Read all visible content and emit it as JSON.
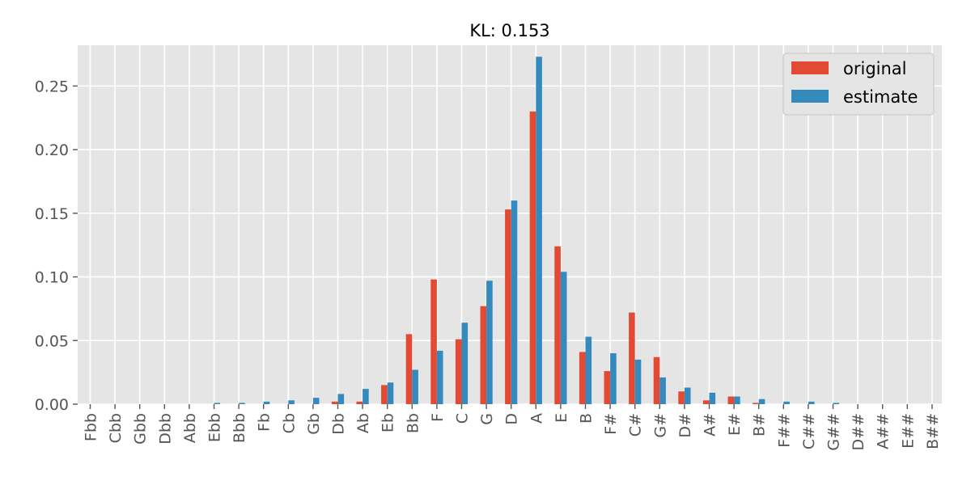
{
  "chart_data": {
    "type": "bar",
    "title": "KL: 0.153",
    "xlabel": "",
    "ylabel": "",
    "categories": [
      "Fbb",
      "Cbb",
      "Gbb",
      "Dbb",
      "Abb",
      "Ebb",
      "Bbb",
      "Fb",
      "Cb",
      "Gb",
      "Db",
      "Ab",
      "Eb",
      "Bb",
      "F",
      "C",
      "G",
      "D",
      "A",
      "E",
      "B",
      "F#",
      "C#",
      "G#",
      "D#",
      "A#",
      "E#",
      "B#",
      "F##",
      "C##",
      "G##",
      "D##",
      "A##",
      "E##",
      "B##"
    ],
    "series": [
      {
        "name": "original",
        "color": "#E24A33",
        "values": [
          0,
          0,
          0,
          0,
          0,
          0,
          0,
          0,
          0,
          0,
          0.002,
          0.002,
          0.015,
          0.055,
          0.098,
          0.051,
          0.077,
          0.153,
          0.23,
          0.124,
          0.041,
          0.026,
          0.072,
          0.037,
          0.01,
          0.003,
          0.006,
          0.001,
          0,
          0,
          0,
          0,
          0,
          0,
          0
        ]
      },
      {
        "name": "estimate",
        "color": "#348ABD",
        "values": [
          0,
          0,
          0,
          0,
          0,
          0.001,
          0.001,
          0.002,
          0.003,
          0.005,
          0.008,
          0.012,
          0.017,
          0.027,
          0.042,
          0.064,
          0.097,
          0.16,
          0.273,
          0.104,
          0.053,
          0.04,
          0.035,
          0.021,
          0.013,
          0.009,
          0.006,
          0.004,
          0.002,
          0.002,
          0.001,
          0,
          0,
          0,
          0
        ]
      }
    ],
    "ylim": [
      0,
      0.282
    ],
    "yticks": [
      "0.00",
      "0.05",
      "0.10",
      "0.15",
      "0.20",
      "0.25"
    ],
    "ytick_values": [
      0,
      0.05,
      0.1,
      0.15,
      0.2,
      0.25
    ],
    "grid": true,
    "legend_position": "top-right",
    "background": "#E5E5E5",
    "grid_color": "#FFFFFF"
  }
}
